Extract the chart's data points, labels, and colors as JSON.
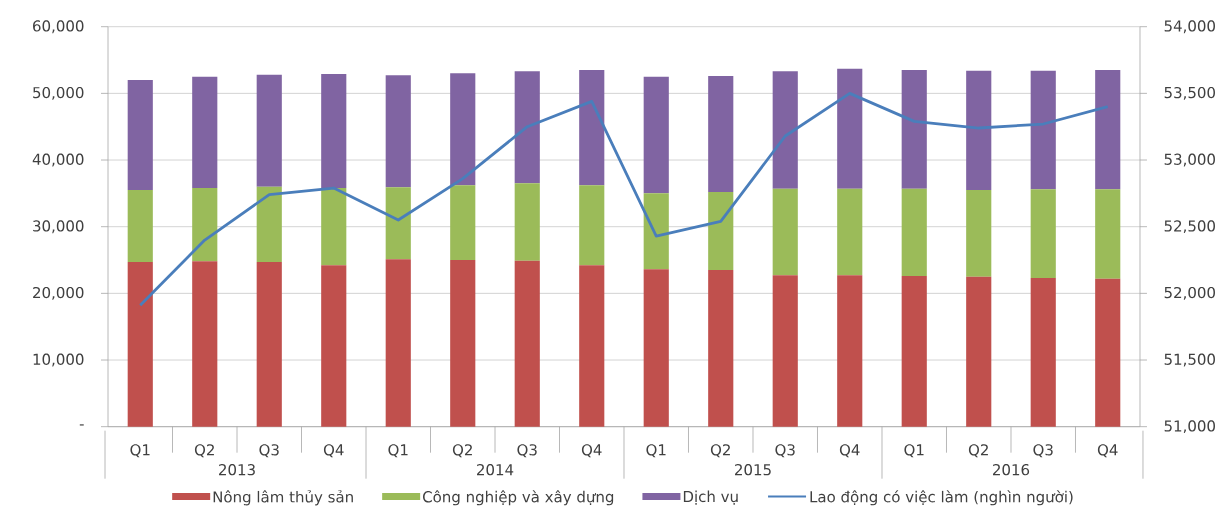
{
  "chart_data": {
    "type": "bar",
    "stacked": true,
    "categories": [
      "Q1",
      "Q2",
      "Q3",
      "Q4",
      "Q1",
      "Q2",
      "Q3",
      "Q4",
      "Q1",
      "Q2",
      "Q3",
      "Q4",
      "Q1",
      "Q2",
      "Q3",
      "Q4"
    ],
    "annotations": [
      "2013",
      "2014",
      "2015",
      "2016"
    ],
    "series": [
      {
        "name": "Nông lâm thủy sản",
        "color": "#c0504d",
        "values": [
          24700,
          24800,
          24700,
          24200,
          25100,
          25000,
          24900,
          24200,
          23600,
          23500,
          22700,
          22700,
          22600,
          22500,
          22300,
          22200
        ]
      },
      {
        "name": "Công nghiệp và xây dựng",
        "color": "#9bbb59",
        "values": [
          10800,
          11000,
          11300,
          11600,
          10800,
          11200,
          11600,
          12000,
          11400,
          11700,
          13000,
          13000,
          13100,
          13000,
          13300,
          13400
        ]
      },
      {
        "name": "Dịch vụ",
        "color": "#8064a2",
        "values": [
          16500,
          16700,
          16800,
          17100,
          16800,
          16800,
          16800,
          17300,
          17500,
          17400,
          17600,
          18000,
          17800,
          17900,
          17800,
          17900
        ]
      },
      {
        "name": "Lao động có việc làm (nghìn người)",
        "type": "line",
        "axis": "y2",
        "color": "#4a7ebb",
        "values": [
          51910,
          52400,
          52740,
          52790,
          52550,
          52860,
          53250,
          53440,
          52430,
          52540,
          53180,
          53500,
          53290,
          53240,
          53270,
          53400
        ]
      }
    ],
    "ylim": [
      0,
      60000
    ],
    "yticks": [
      {
        "value": 0,
        "label": "-"
      },
      {
        "value": 10000,
        "label": "10,000"
      },
      {
        "value": 20000,
        "label": "20,000"
      },
      {
        "value": 30000,
        "label": "30,000"
      },
      {
        "value": 40000,
        "label": "40,000"
      },
      {
        "value": 50000,
        "label": "50,000"
      },
      {
        "value": 60000,
        "label": "60,000"
      }
    ],
    "y2lim": [
      51000,
      54000
    ],
    "y2ticks": [
      {
        "value": 51000,
        "label": "51,000"
      },
      {
        "value": 51500,
        "label": "51,500"
      },
      {
        "value": 52000,
        "label": "52,000"
      },
      {
        "value": 52500,
        "label": "52,500"
      },
      {
        "value": 53000,
        "label": "53,000"
      },
      {
        "value": 53500,
        "label": "53,500"
      },
      {
        "value": 54000,
        "label": "54,000"
      }
    ],
    "grid": "y",
    "legend": "bottom"
  }
}
